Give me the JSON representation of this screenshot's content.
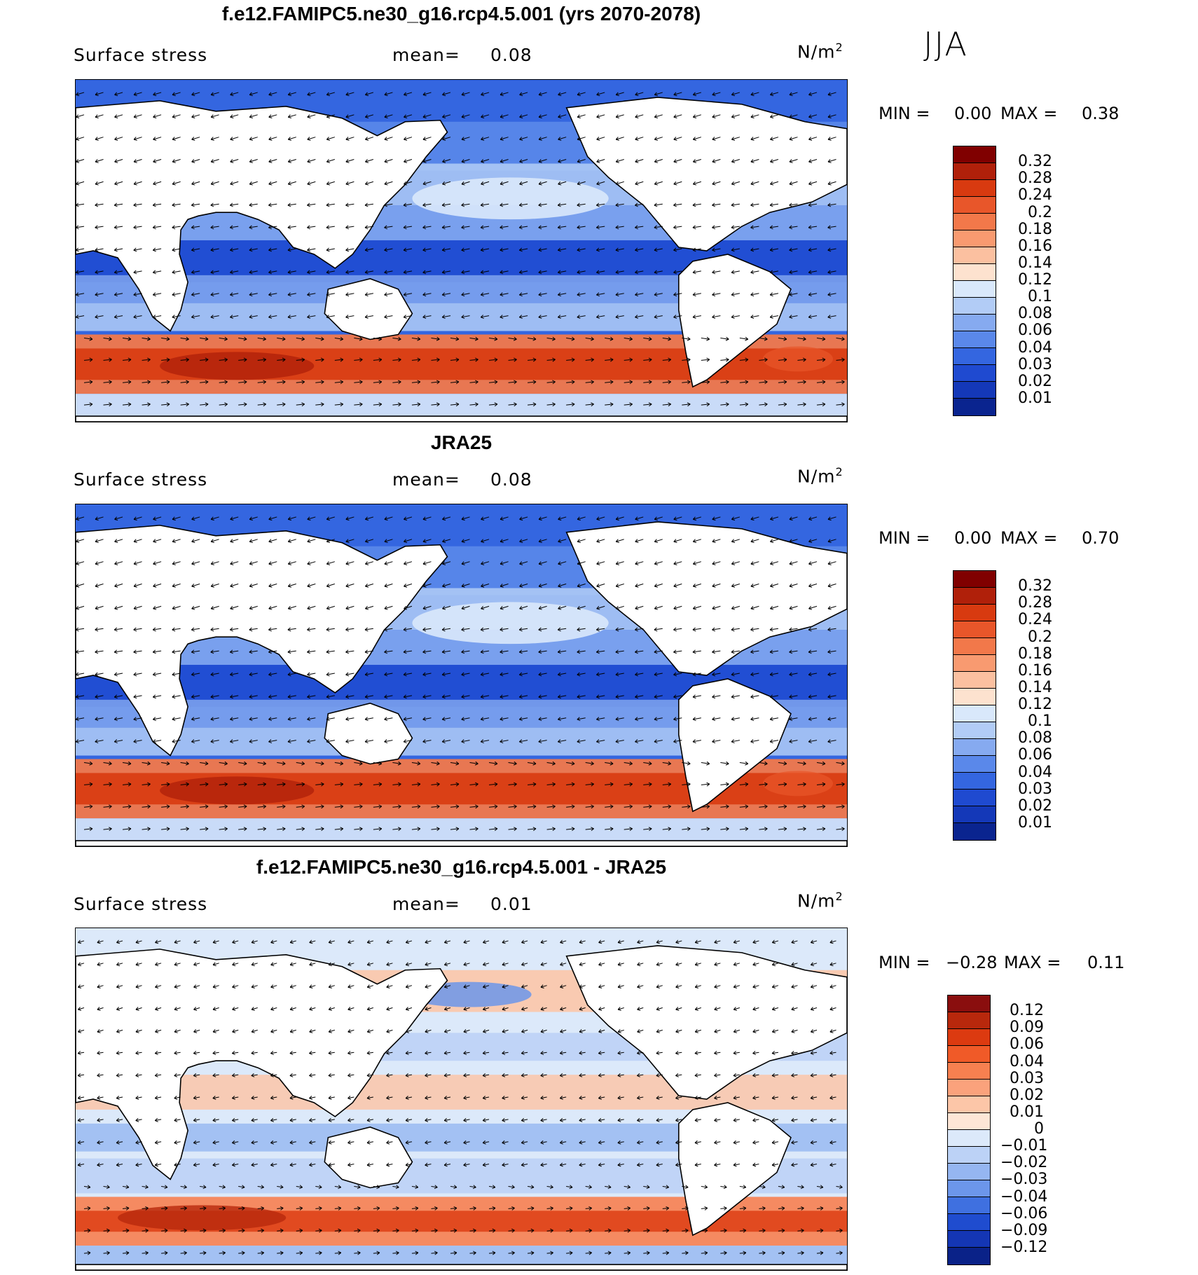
{
  "season": "JJA",
  "panels": [
    {
      "title": "f.e12.FAMIPC5.ne30_g16.rcp4.5.001 (yrs 2070-2078)",
      "variable": "Surface stress",
      "mean_label": "mean=",
      "mean_value": "0.08",
      "units_base": "N/m",
      "units_exp": "2",
      "min_label": "MIN =",
      "min_value": "0.00",
      "max_label": "MAX =",
      "max_value": "0.38",
      "colorbar": {
        "labels": [
          "0.32",
          "0.28",
          "0.24",
          "0.2",
          "0.18",
          "0.16",
          "0.14",
          "0.12",
          "0.1",
          "0.08",
          "0.06",
          "0.04",
          "0.03",
          "0.02",
          "0.01"
        ],
        "colors": [
          "#800000",
          "#b0200a",
          "#d83a10",
          "#e8562a",
          "#f2784a",
          "#f89a70",
          "#fbc0a0",
          "#fde2cf",
          "#d9e8fb",
          "#b2ccf6",
          "#86aaf0",
          "#5a88ea",
          "#3466e0",
          "#1f4ad0",
          "#1438b8",
          "#0a248f"
        ]
      }
    },
    {
      "title": "JRA25",
      "variable": "Surface stress",
      "mean_label": "mean=",
      "mean_value": "0.08",
      "units_base": "N/m",
      "units_exp": "2",
      "min_label": "MIN =",
      "min_value": "0.00",
      "max_label": "MAX =",
      "max_value": "0.70",
      "colorbar": {
        "labels": [
          "0.32",
          "0.28",
          "0.24",
          "0.2",
          "0.18",
          "0.16",
          "0.14",
          "0.12",
          "0.1",
          "0.08",
          "0.06",
          "0.04",
          "0.03",
          "0.02",
          "0.01"
        ],
        "colors": [
          "#800000",
          "#b0200a",
          "#d83a10",
          "#e8562a",
          "#f2784a",
          "#f89a70",
          "#fbc0a0",
          "#fde2cf",
          "#d9e8fb",
          "#b2ccf6",
          "#86aaf0",
          "#5a88ea",
          "#3466e0",
          "#1f4ad0",
          "#1438b8",
          "#0a248f"
        ]
      }
    },
    {
      "title": "f.e12.FAMIPC5.ne30_g16.rcp4.5.001 - JRA25",
      "variable": "Surface stress",
      "mean_label": "mean=",
      "mean_value": "0.01",
      "units_base": "N/m",
      "units_exp": "2",
      "min_label": "MIN =",
      "min_value": "−0.28",
      "max_label": "MAX =",
      "max_value": "0.11",
      "colorbar": {
        "labels": [
          "0.12",
          "0.09",
          "0.06",
          "0.04",
          "0.03",
          "0.02",
          "0.01",
          "0",
          "−0.01",
          "−0.02",
          "−0.03",
          "−0.04",
          "−0.06",
          "−0.09",
          "−0.12"
        ],
        "colors": [
          "#8a0e0e",
          "#b8280c",
          "#dc3a10",
          "#f05a28",
          "#f78050",
          "#faa27c",
          "#fcc6a8",
          "#fde6d6",
          "#dce9fa",
          "#bcd2f6",
          "#95b6f1",
          "#6c96ea",
          "#3f70e0",
          "#1f4ccf",
          "#1436b4",
          "#0a2288"
        ]
      }
    }
  ]
}
